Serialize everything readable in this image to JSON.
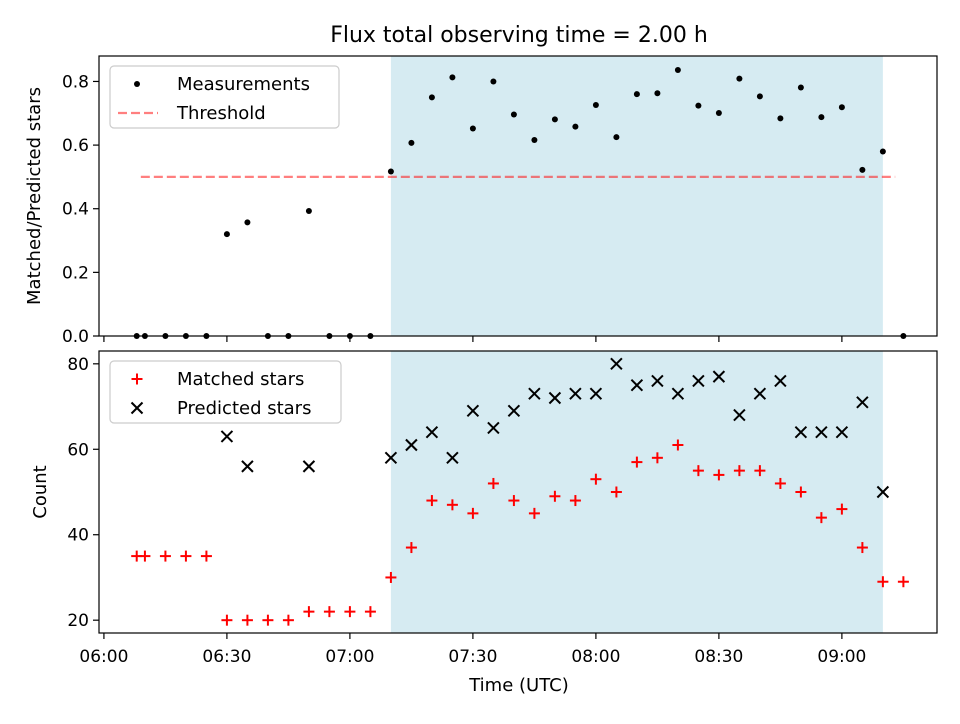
{
  "title": "Flux total observing time = 2.00 h",
  "xlabel": "Time (UTC)",
  "x_ticks": [
    "06:00",
    "06:30",
    "07:00",
    "07:30",
    "08:00",
    "08:30",
    "09:00"
  ],
  "colors": {
    "shade": "#add8e6",
    "threshold": "#ff0000",
    "matched": "#ff0000",
    "predicted": "#000000",
    "measurement": "#000000"
  },
  "chart_data": [
    {
      "type": "scatter",
      "ylabel": "Matched/Predicted stars",
      "ylim": [
        0,
        0.88
      ],
      "y_ticks": [
        "0.0",
        "0.2",
        "0.4",
        "0.6",
        "0.8"
      ],
      "y_tick_values": [
        0,
        0.2,
        0.4,
        0.6,
        0.8
      ],
      "legend": [
        "Measurements",
        "Threshold"
      ],
      "legend_position": "upper-left",
      "threshold": {
        "value": 0.5,
        "x_start": "06:09",
        "x_end": "09:13",
        "style": "dashed"
      },
      "shaded_span": {
        "x_start": "07:10",
        "x_end": "09:10"
      },
      "series": [
        {
          "name": "Measurements",
          "marker": "dot",
          "x": [
            "06:08",
            "06:10",
            "06:15",
            "06:20",
            "06:25",
            "06:30",
            "06:35",
            "06:40",
            "06:45",
            "06:50",
            "06:55",
            "07:00",
            "07:05",
            "07:10",
            "07:15",
            "07:20",
            "07:25",
            "07:30",
            "07:35",
            "07:40",
            "07:45",
            "07:50",
            "07:55",
            "08:00",
            "08:05",
            "08:10",
            "08:15",
            "08:20",
            "08:25",
            "08:30",
            "08:35",
            "08:40",
            "08:45",
            "08:50",
            "08:55",
            "09:00",
            "09:05",
            "09:10",
            "09:15"
          ],
          "y": [
            0.0,
            0.0,
            0.0,
            0.0,
            0.0,
            0.32,
            0.357,
            0.0,
            0.0,
            0.393,
            0.0,
            0.0,
            0.0,
            0.517,
            0.607,
            0.75,
            0.813,
            0.652,
            0.8,
            0.696,
            0.616,
            0.681,
            0.658,
            0.726,
            0.625,
            0.76,
            0.763,
            0.836,
            0.724,
            0.701,
            0.809,
            0.753,
            0.684,
            0.781,
            0.688,
            0.719,
            0.522,
            0.58,
            0.0
          ]
        }
      ]
    },
    {
      "type": "scatter",
      "ylabel": "Count",
      "ylim": [
        17,
        83
      ],
      "y_ticks": [
        "20",
        "40",
        "60",
        "80"
      ],
      "y_tick_values": [
        20,
        40,
        60,
        80
      ],
      "legend": [
        "Matched stars",
        "Predicted stars"
      ],
      "legend_position": "upper-left",
      "shaded_span": {
        "x_start": "07:10",
        "x_end": "09:10"
      },
      "series": [
        {
          "name": "Matched stars",
          "marker": "plus",
          "x": [
            "06:08",
            "06:10",
            "06:15",
            "06:20",
            "06:25",
            "06:30",
            "06:35",
            "06:40",
            "06:45",
            "06:50",
            "06:55",
            "07:00",
            "07:05",
            "07:10",
            "07:15",
            "07:20",
            "07:25",
            "07:30",
            "07:35",
            "07:40",
            "07:45",
            "07:50",
            "07:55",
            "08:00",
            "08:05",
            "08:10",
            "08:15",
            "08:20",
            "08:25",
            "08:30",
            "08:35",
            "08:40",
            "08:45",
            "08:50",
            "08:55",
            "09:00",
            "09:05",
            "09:10",
            "09:15"
          ],
          "y": [
            35,
            35,
            35,
            35,
            35,
            20,
            20,
            20,
            20,
            22,
            22,
            22,
            22,
            30,
            37,
            48,
            47,
            45,
            52,
            48,
            45,
            49,
            48,
            53,
            50,
            57,
            58,
            61,
            55,
            54,
            55,
            55,
            52,
            50,
            44,
            46,
            37,
            29,
            29
          ]
        },
        {
          "name": "Predicted stars",
          "marker": "x",
          "x": [
            "06:30",
            "06:35",
            "06:50",
            "07:10",
            "07:15",
            "07:20",
            "07:25",
            "07:30",
            "07:35",
            "07:40",
            "07:45",
            "07:50",
            "07:55",
            "08:00",
            "08:05",
            "08:10",
            "08:15",
            "08:20",
            "08:25",
            "08:30",
            "08:35",
            "08:40",
            "08:45",
            "08:50",
            "08:55",
            "09:00",
            "09:05",
            "09:10"
          ],
          "y": [
            63,
            56,
            56,
            58,
            61,
            64,
            58,
            69,
            65,
            69,
            73,
            72,
            73,
            73,
            80,
            75,
            76,
            73,
            76,
            77,
            68,
            73,
            76,
            64,
            64,
            64,
            71,
            50
          ]
        }
      ]
    }
  ]
}
